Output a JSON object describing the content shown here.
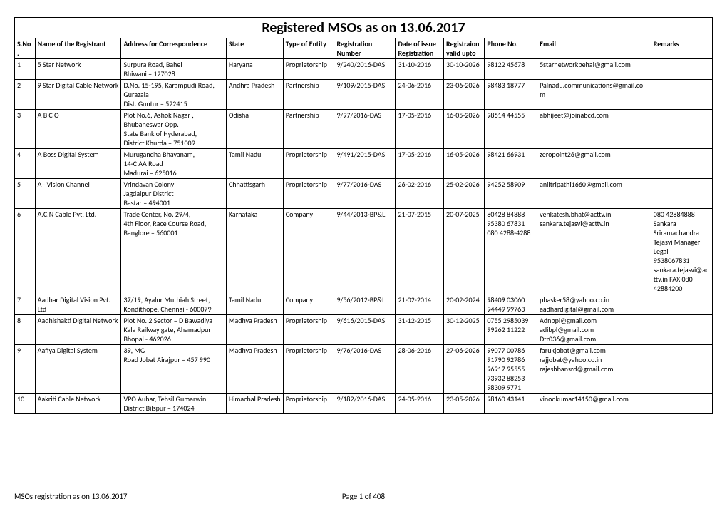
{
  "title": "Registered MSOs as on 13.06.2017",
  "columns": [
    "S.No.",
    "Name of the Registrant",
    "Address for Correspondence",
    "State",
    "Type of Entity",
    "Registration Number",
    "Date of issue Registration",
    "Registraion valid upto",
    "Phone No.",
    "Email",
    "Remarks"
  ],
  "rows": [
    {
      "sn": "1",
      "name": "5 Star Network",
      "addr": "Surpura Road, Bahel\nBhiwani – 127028",
      "state": "Haryana",
      "type": "Proprietorship",
      "reg": "9/240/2016-DAS",
      "date": "31-10-2016",
      "valid": "30-10-2026",
      "phone": "98122 45678",
      "email": "5starnetworkbehal@gmail.com",
      "remarks": ""
    },
    {
      "sn": "2",
      "name": "9 Star Digital Cable Network",
      "addr": "D.No. 15-195, Karampudi Road, Gurazala\nDist. Guntur – 522415",
      "state": "Andhra Pradesh",
      "type": "Partnership",
      "reg": "9/109/2015-DAS",
      "date": "24-06-2016",
      "valid": "23-06-2026",
      "phone": "98483 18777",
      "email": "Palnadu.communications@gmail.com",
      "remarks": ""
    },
    {
      "sn": "3",
      "name": "A B C O",
      "addr": "Plot No.6, Ashok Nagar ,\nBhubaneswar Opp.\nState Bank of Hyderabad,\nDistrict Khurda  – 751009",
      "state": "Odisha",
      "type": "Partnership",
      "reg": "9/97/2016-DAS",
      "date": "17-05-2016",
      "valid": "16-05-2026",
      "phone": "98614 44555",
      "email": "abhijeet@joinabcd.com",
      "remarks": ""
    },
    {
      "sn": "4",
      "name": "A Boss Digital System",
      "addr": "Murugandha Bhavanam,\n14-C AA Road\nMadurai  – 625016",
      "state": "Tamil Nadu",
      "type": "Proprietorship",
      "reg": "9/491/2015-DAS",
      "date": "17-05-2016",
      "valid": "16-05-2026",
      "phone": "98421 66931",
      "email": "zeropoint26@gmail.com",
      "remarks": ""
    },
    {
      "sn": "5",
      "name": "A– Vision Channel",
      "addr": "Vrindavan Colony\nJagdalpur District\nBastar – 494001",
      "state": "Chhattisgarh",
      "type": "Proprietorship",
      "reg": "9/77/2016-DAS",
      "date": "26-02-2016",
      "valid": "25-02-2026",
      "phone": "94252 58909",
      "email": "aniltripathi1660@gmail.com",
      "remarks": ""
    },
    {
      "sn": "6",
      "name": "A.C.N Cable Pvt. Ltd.",
      "addr": "Trade Center, No. 29/4,\n4th Floor, Race Course Road,\nBanglore – 560001",
      "state": "Karnataka",
      "type": "Company",
      "reg": "9/44/2013-BP&L",
      "date": "21-07-2015",
      "valid": "20-07-2025",
      "phone": "80428 84888\n95380 67831\n080 4288-4288",
      "email": "venkatesh.bhat@acttv.in\nsankara.tejasvi@acttv.in",
      "remarks": "080 42884888\nSankara Sriramachandra Tejasvi Manager Legal\n9538067831\nsankara.tejasvi@acttv.in FAX 080 42884200"
    },
    {
      "sn": "7",
      "name": "Aadhar Digital Vision Pvt. Ltd",
      "addr": "37/19, Ayalur Muthiah Street,\nKondithope, Chennai - 600079",
      "state": "Tamil Nadu",
      "type": "Company",
      "reg": "9/56/2012-BP&L",
      "date": "21-02-2014",
      "valid": "20-02-2024",
      "phone": "98409 03060\n94449 99763",
      "email": "pbasker58@yahoo.co.in\naadhardigital@gmail.com",
      "remarks": ""
    },
    {
      "sn": "8",
      "name": "Aadhishakti Digital Network",
      "addr": "Plot No. 2 Sector – D Bawadiya Kala Railway gate, Ahamadpur\nBhopal - 462026",
      "state": "Madhya Pradesh",
      "type": "Proprietorship",
      "reg": "9/616/2015-DAS",
      "date": "31-12-2015",
      "valid": "30-12-2025",
      "phone": "0755 2985039\n99262 11222",
      "email": "Adnbpl@gmail.com\nadibpl@gmail.com\nDtr036@gmail.com",
      "remarks": ""
    },
    {
      "sn": "9",
      "name": "Aafiya Digital System",
      "addr": "39, MG\nRoad Jobat Airajpur – 457 990",
      "state": "Madhya Pradesh",
      "type": "Proprietorship",
      "reg": "9/76/2016-DAS",
      "date": "28-06-2016",
      "valid": "27-06-2026",
      "phone": "99077 00786\n91790 92786\n96917 95555\n73932 88253\n98309 9771",
      "email": "farukjobat@gmail.com\nrajjobat@yahoo.co.in\nrajeshbansrd@gmail.com",
      "remarks": ""
    },
    {
      "sn": "10",
      "name": "Aakriti Cable Network",
      "addr": "VPO Auhar, Tehsil Gumarwin,\nDistrict  Bilspur  – 174024",
      "state": "Himachal Pradesh",
      "type": "Proprietorship",
      "reg": "9/182/2016-DAS",
      "date": "24-05-2016",
      "valid": "23-05-2026",
      "phone": "98160 43141",
      "email": "vinodkumar14150@gmail.com",
      "remarks": ""
    }
  ],
  "footer": {
    "left": "MSOs registration as on 13.06.2017",
    "center": "Page 1 of 408"
  }
}
